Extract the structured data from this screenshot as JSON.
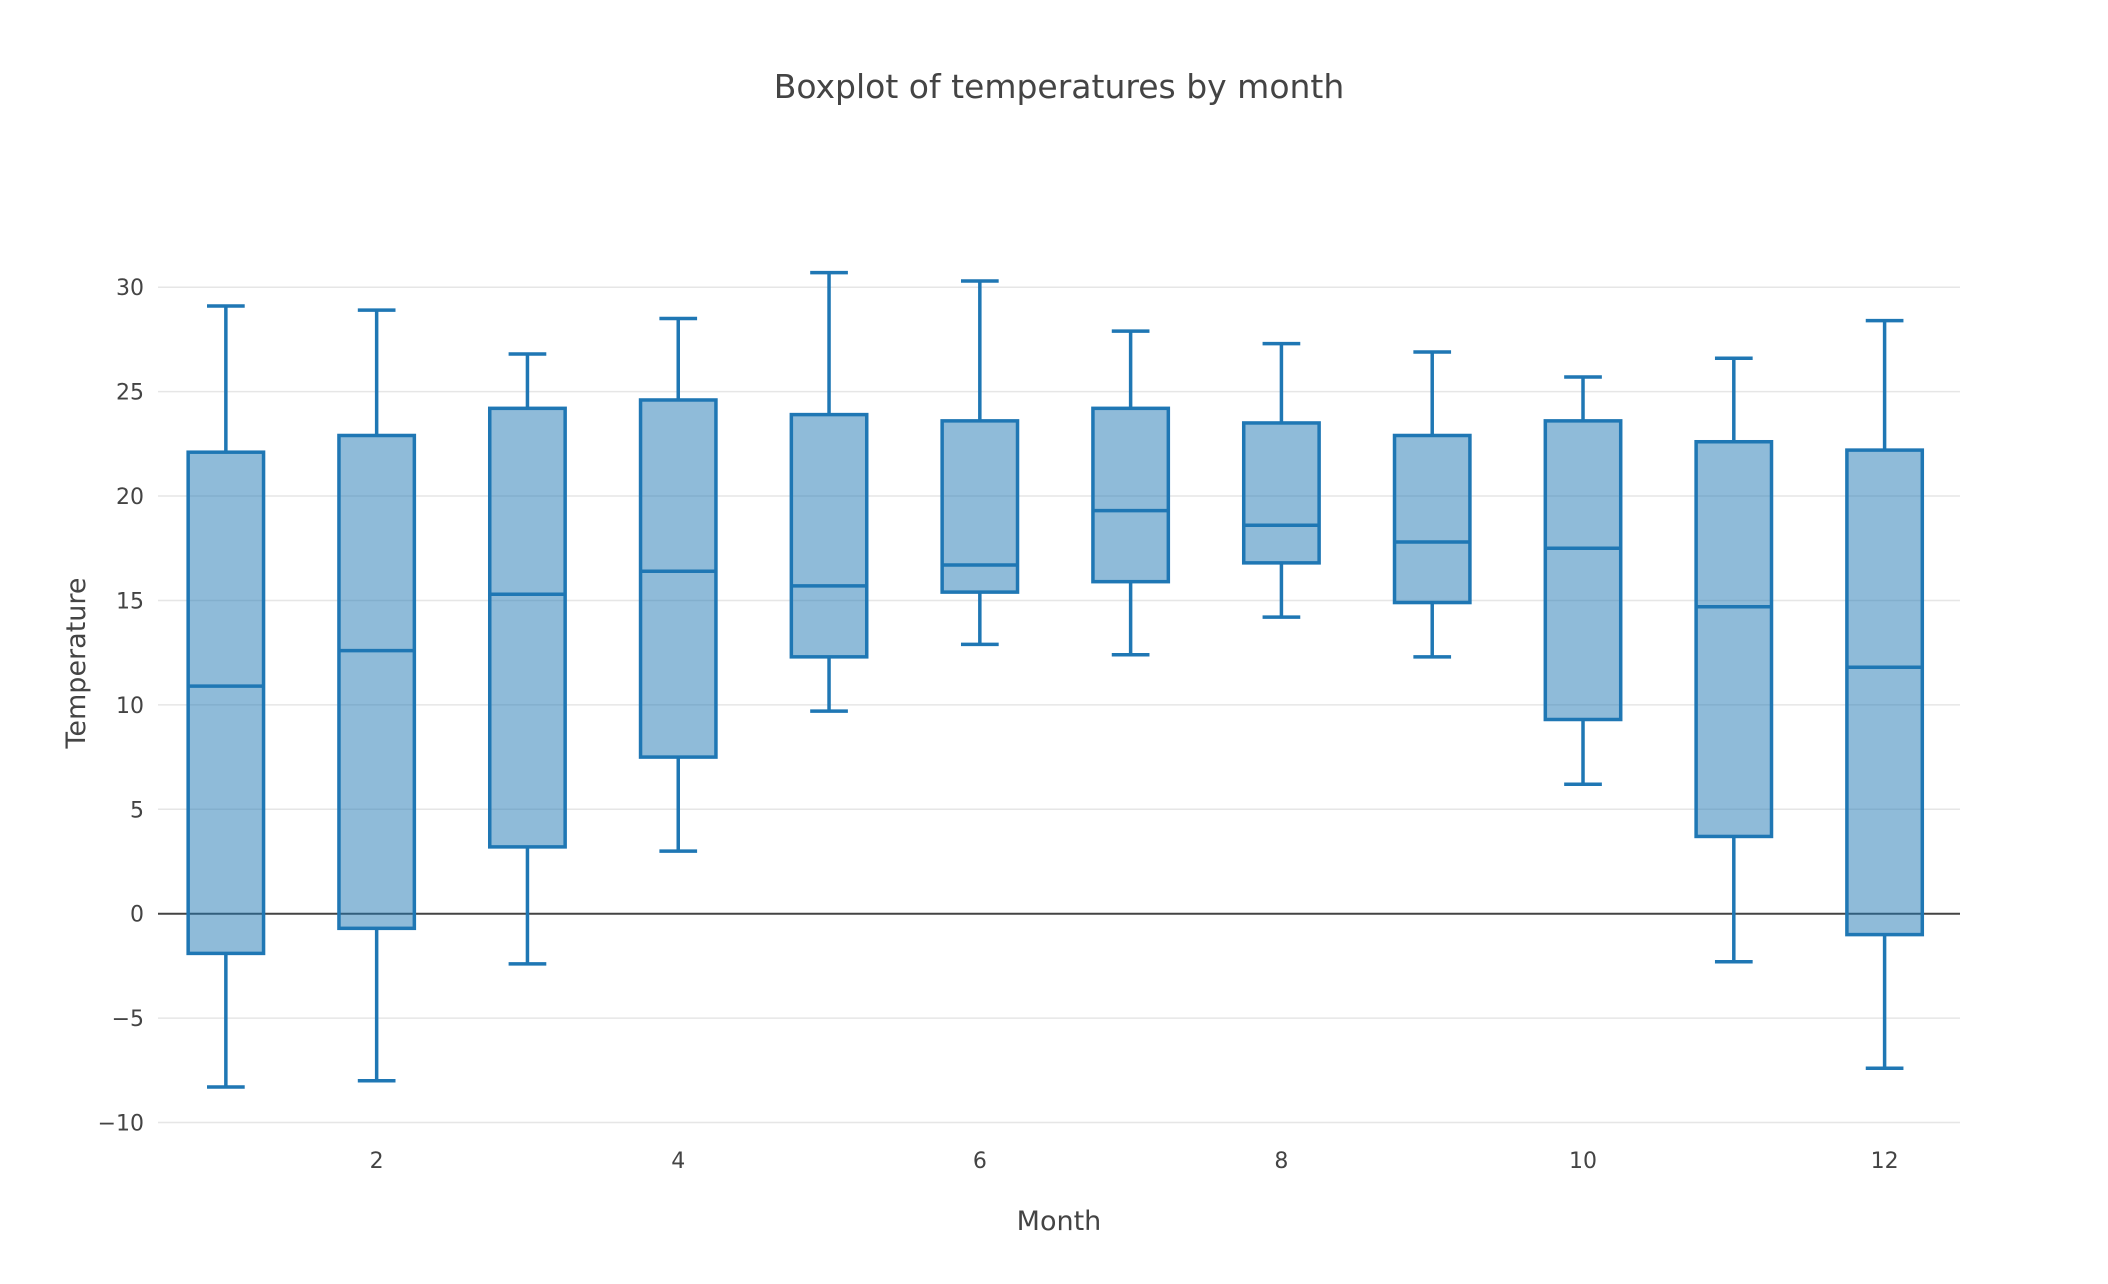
{
  "chart_data": {
    "type": "box",
    "title": "Boxplot of temperatures by month",
    "xlabel": "Month",
    "ylabel": "Temperature",
    "xlim": [
      0.55,
      12.5
    ],
    "ylim": [
      -10.5,
      32.5
    ],
    "xticks": [
      2,
      4,
      6,
      8,
      10,
      12
    ],
    "yticks": [
      -10,
      -5,
      0,
      5,
      10,
      15,
      20,
      25,
      30
    ],
    "ytick_labels": [
      "−10",
      "−5",
      "0",
      "5",
      "10",
      "15",
      "20",
      "25",
      "30"
    ],
    "grid": true,
    "zero_line": true,
    "box_color": "#1f77b4",
    "box_fill": "rgba(31,119,180,0.5)",
    "boxes": [
      {
        "month": 1,
        "whisker_low": -8.3,
        "q1": -1.9,
        "median": 10.9,
        "q3": 22.1,
        "whisker_high": 29.1
      },
      {
        "month": 2,
        "whisker_low": -8.0,
        "q1": -0.7,
        "median": 12.6,
        "q3": 22.9,
        "whisker_high": 28.9
      },
      {
        "month": 3,
        "whisker_low": -2.4,
        "q1": 3.2,
        "median": 15.3,
        "q3": 24.2,
        "whisker_high": 26.8
      },
      {
        "month": 4,
        "whisker_low": 3.0,
        "q1": 7.5,
        "median": 16.4,
        "q3": 24.6,
        "whisker_high": 28.5
      },
      {
        "month": 5,
        "whisker_low": 9.7,
        "q1": 12.3,
        "median": 15.7,
        "q3": 23.9,
        "whisker_high": 30.7
      },
      {
        "month": 6,
        "whisker_low": 12.9,
        "q1": 15.4,
        "median": 16.7,
        "q3": 23.6,
        "whisker_high": 30.3
      },
      {
        "month": 7,
        "whisker_low": 12.4,
        "q1": 15.9,
        "median": 19.3,
        "q3": 24.2,
        "whisker_high": 27.9
      },
      {
        "month": 8,
        "whisker_low": 14.2,
        "q1": 16.8,
        "median": 18.6,
        "q3": 23.5,
        "whisker_high": 27.3
      },
      {
        "month": 9,
        "whisker_low": 12.3,
        "q1": 14.9,
        "median": 17.8,
        "q3": 22.9,
        "whisker_high": 26.9
      },
      {
        "month": 10,
        "whisker_low": 6.2,
        "q1": 9.3,
        "median": 17.5,
        "q3": 23.6,
        "whisker_high": 25.7
      },
      {
        "month": 11,
        "whisker_low": -2.3,
        "q1": 3.7,
        "median": 14.7,
        "q3": 22.6,
        "whisker_high": 26.6
      },
      {
        "month": 12,
        "whisker_low": -7.4,
        "q1": -1.0,
        "median": 11.8,
        "q3": 22.2,
        "whisker_high": 28.4
      }
    ]
  }
}
